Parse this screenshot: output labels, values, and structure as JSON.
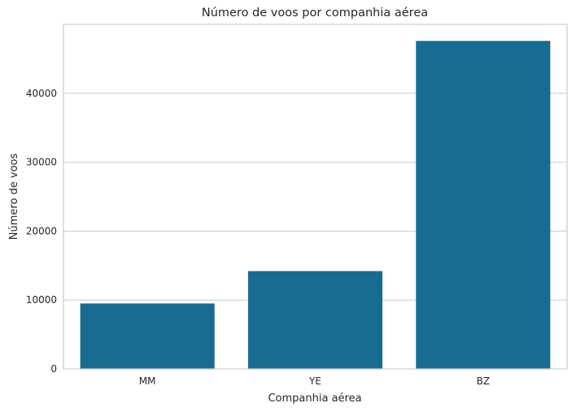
{
  "chart_data": {
    "type": "bar",
    "title": "Número de voos por companhia aérea",
    "xlabel": "Companhia aérea",
    "ylabel": "Número de voos",
    "categories": [
      "MM",
      "YE",
      "BZ"
    ],
    "values": [
      9500,
      14200,
      47600
    ],
    "ylim": [
      0,
      50000
    ],
    "yticks": [
      0,
      10000,
      20000,
      30000,
      40000
    ],
    "ytick_labels": [
      "0",
      "10000",
      "20000",
      "30000",
      "40000"
    ],
    "grid": true,
    "grid_axis": "y",
    "bar_color": "#186c92",
    "grid_color": "#cccccc",
    "frame_color": "#cccccc",
    "text_color": "#262626"
  }
}
